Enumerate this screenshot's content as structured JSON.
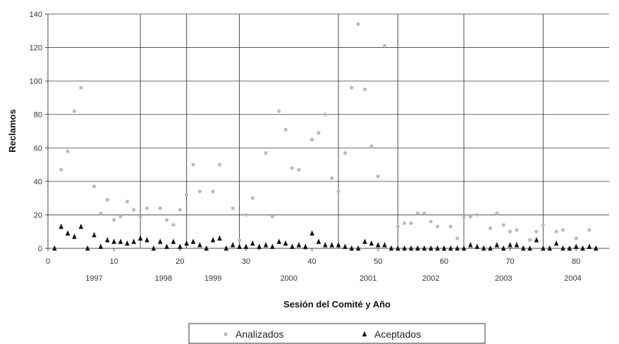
{
  "chart_data": {
    "type": "scatter",
    "xlabel": "Sesión del Comité y Año",
    "ylabel": "Reclamos",
    "xlim": [
      0,
      85
    ],
    "ylim": [
      0,
      140
    ],
    "x_ticks": [
      "0",
      "10",
      "20",
      "30",
      "40",
      "50",
      "60",
      "70",
      "80"
    ],
    "y_ticks": [
      "0",
      "20",
      "40",
      "60",
      "80",
      "100",
      "120",
      "140"
    ],
    "grid": "horizontal lines at each y tick; vertical lines at year boundaries",
    "year_boundaries": [
      14,
      21,
      29,
      44,
      53,
      63,
      75
    ],
    "year_labels": [
      {
        "x": 7,
        "label": "1997"
      },
      {
        "x": 17.5,
        "label": "1998"
      },
      {
        "x": 25,
        "label": "1999"
      },
      {
        "x": 36.5,
        "label": "2000"
      },
      {
        "x": 48.5,
        "label": "2001"
      },
      {
        "x": 58,
        "label": "2002"
      },
      {
        "x": 69,
        "label": "2003"
      },
      {
        "x": 79.5,
        "label": "2004"
      }
    ],
    "legend_position": "bottom",
    "series": [
      {
        "name": "Analizados",
        "marker": "circle",
        "color": "#bbbbbb",
        "x": [
          1,
          2,
          3,
          4,
          5,
          6,
          7,
          8,
          9,
          10,
          11,
          12,
          13,
          14,
          15,
          16,
          17,
          18,
          19,
          20,
          21,
          22,
          23,
          24,
          25,
          26,
          27,
          28,
          29,
          30,
          31,
          32,
          33,
          34,
          35,
          36,
          37,
          38,
          39,
          40,
          41,
          42,
          43,
          44,
          45,
          46,
          47,
          48,
          49,
          50,
          51,
          52,
          53,
          54,
          55,
          56,
          57,
          58,
          59,
          60,
          61,
          62,
          63,
          64,
          65,
          66,
          67,
          68,
          69,
          70,
          71,
          72,
          73,
          74,
          75,
          76,
          77,
          78,
          79,
          80,
          81,
          82,
          83
        ],
        "y": [
          0,
          47,
          58,
          82,
          96,
          0,
          37,
          21,
          29,
          17,
          19,
          28,
          23,
          19,
          24,
          0,
          24,
          17,
          14,
          23,
          32,
          50,
          34,
          0,
          34,
          50,
          0,
          24,
          5,
          20,
          30,
          0,
          57,
          19,
          82,
          71,
          48,
          47,
          0,
          65,
          69,
          80,
          42,
          34,
          57,
          96,
          134,
          95,
          61,
          43,
          121,
          0,
          13,
          15,
          15,
          21,
          21,
          16,
          13,
          0,
          13,
          6,
          19,
          19,
          20,
          0,
          12,
          21,
          14,
          10,
          11,
          0,
          5,
          10,
          14,
          0,
          10,
          11,
          0,
          6,
          0,
          11,
          0
        ]
      },
      {
        "name": "Aceptados",
        "marker": "triangle",
        "color": "#111111",
        "x": [
          1,
          2,
          3,
          4,
          5,
          6,
          7,
          8,
          9,
          10,
          11,
          12,
          13,
          14,
          15,
          16,
          17,
          18,
          19,
          20,
          21,
          22,
          23,
          24,
          25,
          26,
          27,
          28,
          29,
          30,
          31,
          32,
          33,
          34,
          35,
          36,
          37,
          38,
          39,
          40,
          41,
          42,
          43,
          44,
          45,
          46,
          47,
          48,
          49,
          50,
          51,
          52,
          53,
          54,
          55,
          56,
          57,
          58,
          59,
          60,
          61,
          62,
          63,
          64,
          65,
          66,
          67,
          68,
          69,
          70,
          71,
          72,
          73,
          74,
          75,
          76,
          77,
          78,
          79,
          80,
          81,
          82,
          83
        ],
        "y": [
          0,
          13,
          9,
          7,
          13,
          0,
          8,
          1,
          5,
          4,
          4,
          3,
          4,
          6,
          5,
          0,
          4,
          1,
          4,
          1,
          3,
          4,
          2,
          0,
          5,
          6,
          0,
          2,
          1,
          1,
          3,
          1,
          2,
          1,
          4,
          3,
          1,
          2,
          1,
          9,
          4,
          2,
          2,
          2,
          1,
          0,
          0,
          4,
          3,
          2,
          2,
          0,
          0,
          0,
          0,
          0,
          0,
          0,
          0,
          0,
          0,
          0,
          0,
          2,
          1,
          0,
          0,
          2,
          0,
          2,
          2,
          0,
          0,
          5,
          0,
          0,
          3,
          0,
          0,
          1,
          0,
          1,
          0
        ]
      }
    ]
  }
}
